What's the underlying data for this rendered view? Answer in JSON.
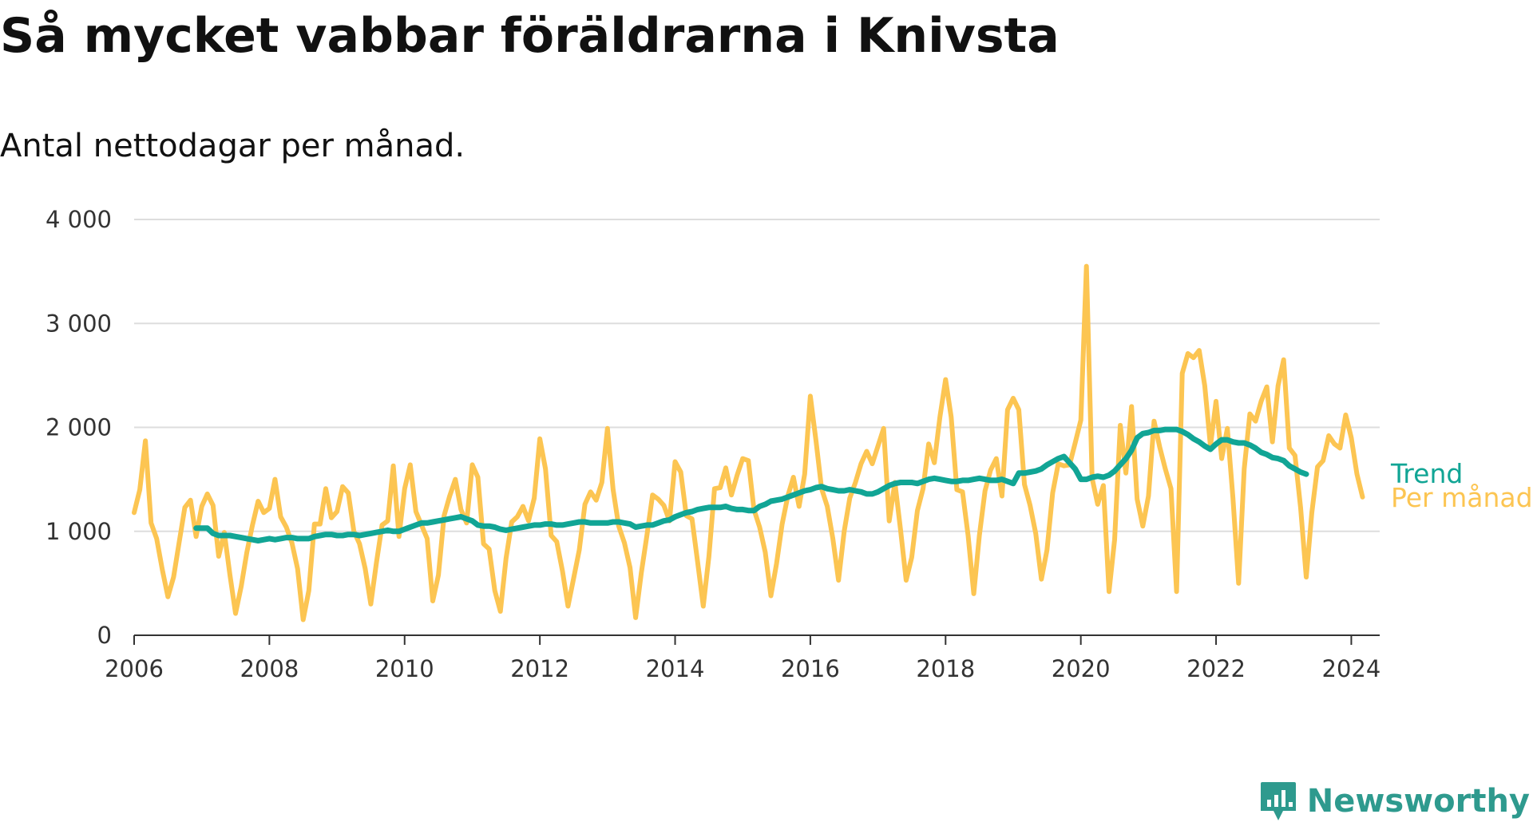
{
  "header": {
    "title": "Så mycket vabbar föräldrarna i Knivsta",
    "subtitle": "Antal nettodagar per månad."
  },
  "brand": {
    "name": "Newsworthy",
    "icon": "newsworthy-logo-icon"
  },
  "colors": {
    "monthly": "#fcc552",
    "trend": "#11a595",
    "grid": "#dddddd",
    "axis": "#333333",
    "brand": "#2e9a8e"
  },
  "chart_data": {
    "type": "line",
    "title": "Så mycket vabbar föräldrarna i Knivsta",
    "subtitle": "Antal nettodagar per månad.",
    "xlabel": "",
    "ylabel": "",
    "xlim": [
      2006,
      2024.42
    ],
    "ylim": [
      0,
      4000
    ],
    "y_ticks": [
      0,
      1000,
      2000,
      3000,
      4000
    ],
    "y_tick_labels": [
      "0",
      "1 000",
      "2 000",
      "3 000",
      "4 000"
    ],
    "x_ticks": [
      2006,
      2008,
      2010,
      2012,
      2014,
      2016,
      2018,
      2020,
      2022,
      2024
    ],
    "x_tick_labels": [
      "2006",
      "2008",
      "2010",
      "2012",
      "2014",
      "2016",
      "2018",
      "2020",
      "2022",
      "2024"
    ],
    "start_year": 2006,
    "legend": "right-end",
    "series": [
      {
        "name": "Per månad",
        "start": 2006.0,
        "values": [
          1180,
          1400,
          1870,
          1080,
          930,
          630,
          370,
          560,
          900,
          1230,
          1300,
          950,
          1240,
          1360,
          1250,
          760,
          990,
          580,
          210,
          470,
          800,
          1060,
          1290,
          1180,
          1220,
          1500,
          1140,
          1040,
          890,
          640,
          150,
          430,
          1070,
          1070,
          1410,
          1130,
          1190,
          1430,
          1370,
          1000,
          880,
          640,
          300,
          700,
          1060,
          1100,
          1630,
          950,
          1410,
          1640,
          1190,
          1060,
          930,
          330,
          580,
          1150,
          1340,
          1500,
          1210,
          1080,
          1640,
          1520,
          880,
          830,
          430,
          230,
          740,
          1090,
          1140,
          1240,
          1100,
          1320,
          1890,
          1600,
          960,
          900,
          620,
          280,
          550,
          820,
          1260,
          1380,
          1300,
          1470,
          1990,
          1400,
          1050,
          890,
          650,
          170,
          600,
          960,
          1350,
          1310,
          1250,
          1100,
          1670,
          1570,
          1150,
          1120,
          700,
          280,
          760,
          1410,
          1420,
          1610,
          1350,
          1540,
          1700,
          1680,
          1210,
          1040,
          800,
          380,
          690,
          1070,
          1340,
          1520,
          1240,
          1550,
          2300,
          1870,
          1410,
          1240,
          930,
          530,
          1000,
          1320,
          1470,
          1650,
          1770,
          1650,
          1820,
          1990,
          1100,
          1470,
          1020,
          530,
          750,
          1200,
          1410,
          1840,
          1660,
          2100,
          2460,
          2100,
          1400,
          1380,
          960,
          400,
          960,
          1390,
          1590,
          1700,
          1340,
          2170,
          2280,
          2170,
          1450,
          1250,
          980,
          540,
          820,
          1370,
          1650,
          1630,
          1640,
          1850,
          2070,
          3550,
          1510,
          1260,
          1440,
          420,
          920,
          2020,
          1560,
          2200,
          1310,
          1050,
          1340,
          2060,
          1810,
          1600,
          1410,
          420,
          2520,
          2710,
          2670,
          2740,
          2400,
          1820,
          2250,
          1700,
          1990,
          1320,
          500,
          1600,
          2130,
          2060,
          2250,
          2390,
          1860,
          2400,
          2650,
          1800,
          1730,
          1230,
          560,
          1180,
          1620,
          1680,
          1920,
          1840,
          1800,
          2120,
          1900,
          1550,
          1330
        ]
      },
      {
        "name": "Trend",
        "start": 2006.917,
        "values": [
          1030,
          1030,
          1030,
          980,
          960,
          960,
          960,
          950,
          940,
          930,
          920,
          910,
          920,
          930,
          920,
          930,
          940,
          940,
          930,
          930,
          930,
          950,
          960,
          970,
          970,
          960,
          960,
          970,
          970,
          960,
          970,
          980,
          990,
          1000,
          1010,
          1000,
          1000,
          1020,
          1040,
          1060,
          1080,
          1080,
          1090,
          1100,
          1110,
          1120,
          1130,
          1140,
          1120,
          1100,
          1060,
          1050,
          1050,
          1040,
          1020,
          1010,
          1020,
          1030,
          1040,
          1050,
          1060,
          1060,
          1070,
          1070,
          1060,
          1060,
          1070,
          1080,
          1090,
          1090,
          1080,
          1080,
          1080,
          1080,
          1090,
          1090,
          1080,
          1070,
          1040,
          1050,
          1060,
          1060,
          1080,
          1100,
          1110,
          1140,
          1160,
          1180,
          1190,
          1210,
          1220,
          1230,
          1230,
          1230,
          1240,
          1220,
          1210,
          1210,
          1200,
          1200,
          1240,
          1260,
          1290,
          1300,
          1310,
          1330,
          1350,
          1370,
          1390,
          1400,
          1420,
          1430,
          1410,
          1400,
          1390,
          1390,
          1400,
          1390,
          1380,
          1360,
          1360,
          1380,
          1410,
          1440,
          1460,
          1470,
          1470,
          1470,
          1460,
          1480,
          1500,
          1510,
          1500,
          1490,
          1480,
          1480,
          1490,
          1490,
          1500,
          1510,
          1500,
          1490,
          1490,
          1500,
          1480,
          1460,
          1560,
          1560,
          1570,
          1580,
          1600,
          1640,
          1670,
          1700,
          1720,
          1660,
          1600,
          1500,
          1500,
          1520,
          1530,
          1520,
          1540,
          1580,
          1640,
          1700,
          1780,
          1900,
          1940,
          1950,
          1970,
          1970,
          1980,
          1980,
          1980,
          1960,
          1930,
          1890,
          1860,
          1820,
          1790,
          1840,
          1880,
          1880,
          1860,
          1850,
          1850,
          1830,
          1800,
          1760,
          1740,
          1710,
          1700,
          1680,
          1630,
          1600,
          1570,
          1550
        ]
      }
    ]
  }
}
